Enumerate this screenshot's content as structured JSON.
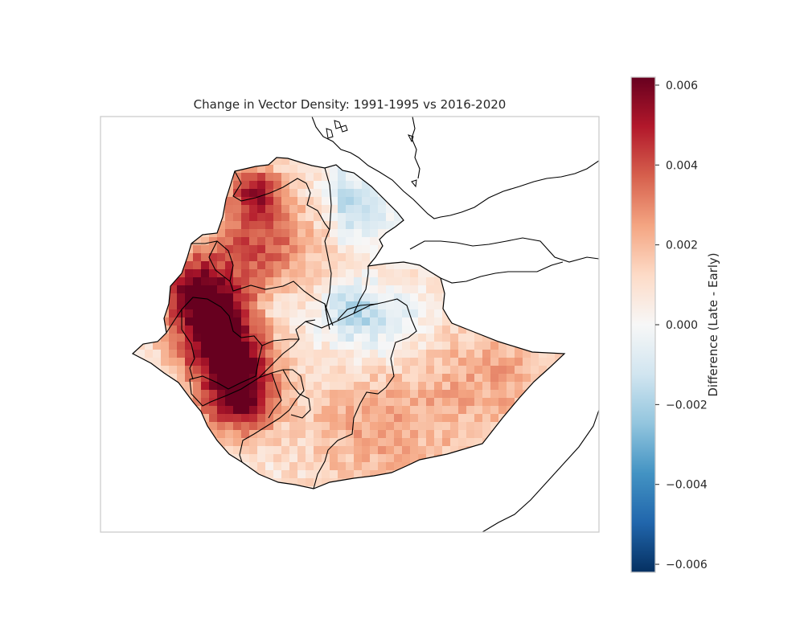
{
  "title": "Change in Vector Density: 1991-1995 vs 2016-2020",
  "colorbar": {
    "label": "Difference (Late - Early)",
    "range": [
      -0.0062,
      0.0062
    ],
    "ticks": [
      {
        "value": 0.006,
        "label": "0.006"
      },
      {
        "value": 0.004,
        "label": "0.004"
      },
      {
        "value": 0.002,
        "label": "0.002"
      },
      {
        "value": 0.0,
        "label": "0.000"
      },
      {
        "value": -0.002,
        "label": "−0.002"
      },
      {
        "value": -0.004,
        "label": "−0.004"
      },
      {
        "value": -0.006,
        "label": "−0.006"
      }
    ],
    "colormap": [
      "#67001f",
      "#b2182b",
      "#d6604d",
      "#f4a582",
      "#fddbc7",
      "#f7f7f7",
      "#d1e5f0",
      "#92c5de",
      "#4393c3",
      "#2166ac",
      "#053061"
    ]
  },
  "map": {
    "axis_frame_color": "#cccccc",
    "boundary_color": "#000000"
  }
}
